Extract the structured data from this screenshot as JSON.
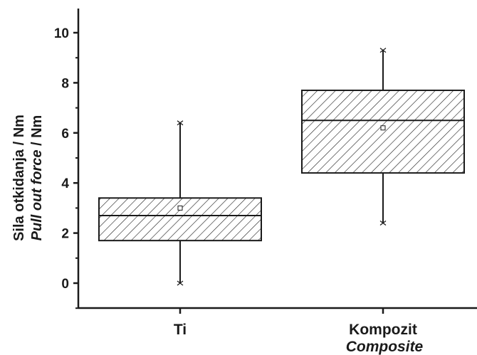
{
  "chart_data": {
    "type": "box",
    "ylabel": "Sila otkidanja / Nm",
    "ylabel_alt_italic": "Pull out force",
    "ylabel_alt_unit": " / Nm",
    "ylim": [
      -1,
      11
    ],
    "yticks": [
      "0",
      "2",
      "4",
      "6",
      "8",
      "10"
    ],
    "tick_values": [
      0,
      2,
      4,
      6,
      8,
      10
    ],
    "grid": false,
    "categories": [
      {
        "label": "Ti",
        "label_alt": "",
        "min": 0,
        "q1": 1.7,
        "median": 2.7,
        "q3": 3.4,
        "max": 6.4,
        "mean": 3.0
      },
      {
        "label": "Kompozit",
        "label_alt": "Composite",
        "min": 2.4,
        "q1": 4.4,
        "median": 6.5,
        "q3": 7.7,
        "max": 9.3,
        "mean": 6.2
      }
    ],
    "box_fill": "hatched",
    "line_color": "#1a1a1a"
  }
}
